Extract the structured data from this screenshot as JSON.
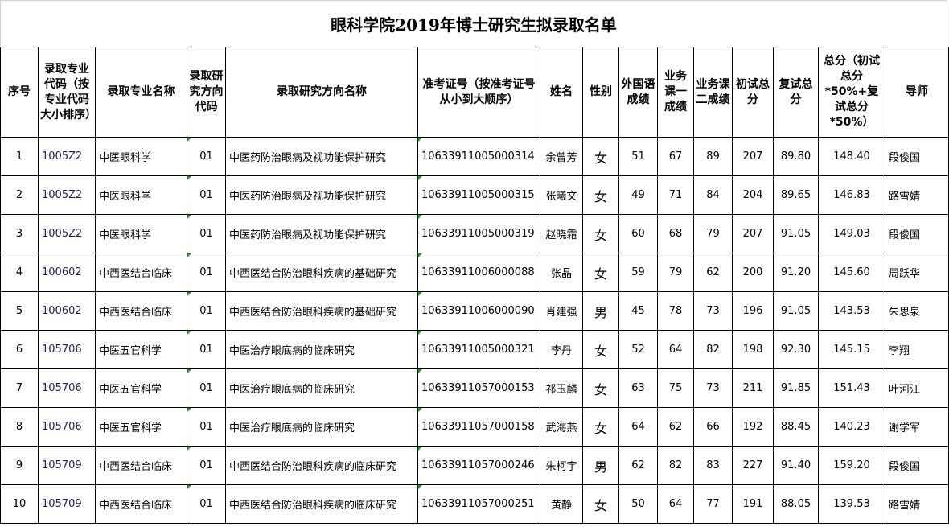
{
  "title": "眼科学院2019年博士研究生拟录取名单",
  "headers": [
    "序号",
    "录取专业代码（按专业代码大小排序）",
    "录取专业名称",
    "录取研究方向代码",
    "录取研究方向名称",
    "准考证号（按准考证号从小到大顺序）",
    "姓名",
    "性别",
    "外国语成绩",
    "业务课一成绩",
    "业务课二成绩",
    "初试总分",
    "复试总分",
    "总分（初试总分*50%+复试总分*50%）",
    "导师"
  ],
  "rows": [
    [
      "1",
      "1005Z2",
      "中医眼科学",
      "01",
      "中医药防治眼病及视功能保护研究",
      "10633911005000314",
      "余曾芳",
      "女",
      "51",
      "67",
      "89",
      "207",
      "89.80",
      "148.40",
      "段俊国"
    ],
    [
      "2",
      "1005Z2",
      "中医眼科学",
      "01",
      "中医药防治眼病及视功能保护研究",
      "10633911005000315",
      "张曦文",
      "女",
      "49",
      "71",
      "84",
      "204",
      "89.65",
      "146.83",
      "路雪婧"
    ],
    [
      "3",
      "1005Z2",
      "中医眼科学",
      "01",
      "中医药防治眼病及视功能保护研究",
      "10633911005000319",
      "赵晓霜",
      "女",
      "60",
      "68",
      "79",
      "207",
      "91.05",
      "149.03",
      "段俊国"
    ],
    [
      "4",
      "100602",
      "中西医结合临床",
      "01",
      "中西医结合防治眼科疾病的基础研究",
      "10633911006000088",
      "张晶",
      "女",
      "59",
      "79",
      "62",
      "200",
      "91.20",
      "145.60",
      "周跃华"
    ],
    [
      "5",
      "100602",
      "中西医结合临床",
      "01",
      "中西医结合防治眼科疾病的基础研究",
      "10633911006000090",
      "肖建强",
      "男",
      "45",
      "78",
      "73",
      "196",
      "91.05",
      "143.53",
      "朱思泉"
    ],
    [
      "6",
      "105706",
      "中医五官科学",
      "01",
      "中医治疗眼底病的临床研究",
      "10633911005000321",
      "李丹",
      "女",
      "52",
      "64",
      "82",
      "198",
      "92.30",
      "145.15",
      "李翔"
    ],
    [
      "7",
      "105706",
      "中医五官科学",
      "01",
      "中医治疗眼底病的临床研究",
      "10633911057000153",
      "祁玉麟",
      "女",
      "63",
      "75",
      "73",
      "211",
      "91.85",
      "151.43",
      "叶河江"
    ],
    [
      "8",
      "105706",
      "中医五官科学",
      "01",
      "中医治疗眼底病的临床研究",
      "10633911057000158",
      "武海燕",
      "女",
      "64",
      "62",
      "66",
      "192",
      "88.45",
      "140.23",
      "谢学军"
    ],
    [
      "9",
      "105709",
      "中西医结合临床",
      "01",
      "中西医结合防治眼科疾病的临床研究",
      "10633911057000246",
      "朱柯宇",
      "男",
      "62",
      "82",
      "83",
      "227",
      "91.40",
      "159.20",
      "段俊国"
    ],
    [
      "10",
      "105709",
      "中西医结合临床",
      "01",
      "中西医结合防治眼科疾病的临床研究",
      "10633911057000251",
      "黄静",
      "女",
      "50",
      "64",
      "77",
      "191",
      "88.05",
      "139.53",
      "路雪婧"
    ]
  ]
}
